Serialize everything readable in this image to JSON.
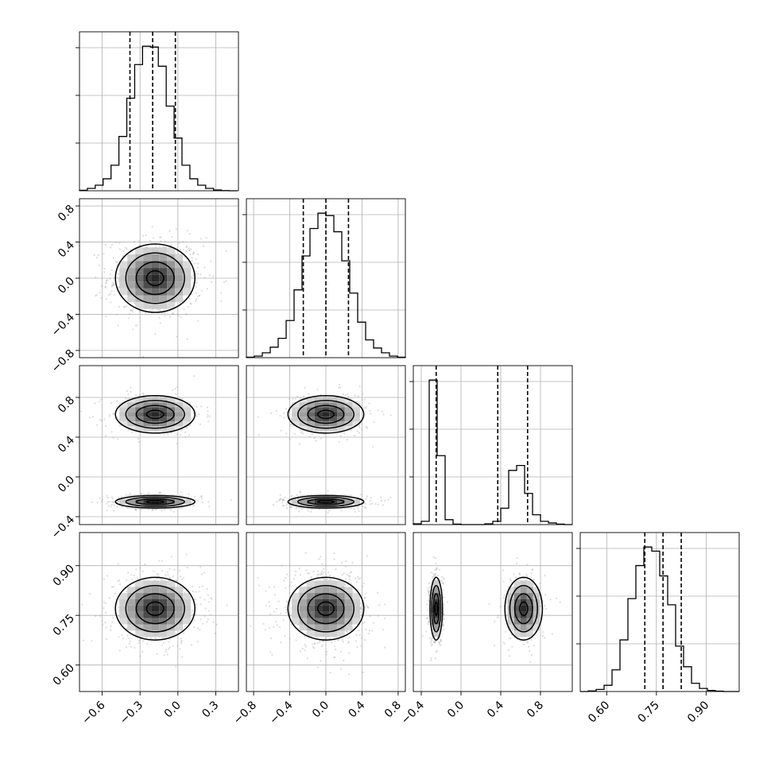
{
  "chart_data": {
    "type": "corner",
    "grid": true,
    "parameters": [
      {
        "index": 0,
        "range": [
          -0.78,
          0.48
        ],
        "ticks": [
          "−0.6",
          "−0.3",
          "0.0",
          "0.3"
        ],
        "tick_values": [
          -0.6,
          -0.3,
          0.0,
          0.3
        ]
      },
      {
        "index": 1,
        "range": [
          -0.88,
          0.88
        ],
        "ticks": [
          "−0.8",
          "−0.4",
          "0.0",
          "0.4",
          "0.8"
        ],
        "tick_values": [
          -0.8,
          -0.4,
          0.0,
          0.4,
          0.8
        ]
      },
      {
        "index": 2,
        "range": [
          -0.48,
          1.12
        ],
        "ticks": [
          "−0.4",
          "0.0",
          "0.4",
          "0.8"
        ],
        "tick_values": [
          -0.4,
          0.0,
          0.4,
          0.8
        ]
      },
      {
        "index": 3,
        "range": [
          0.52,
          1.0
        ],
        "ticks": [
          "0.60",
          "0.75",
          "0.90"
        ],
        "tick_values": [
          0.6,
          0.75,
          0.9
        ]
      }
    ],
    "histograms": [
      {
        "param": 0,
        "quantiles": [
          -0.38,
          -0.2,
          -0.02
        ],
        "bin_edges_start": -0.78,
        "bin_width": 0.0625,
        "counts": [
          0.3,
          1.5,
          3.5,
          7.5,
          16.0,
          34.0,
          58.0,
          79.0,
          90.5,
          90.0,
          78.0,
          53.0,
          33.0,
          16.0,
          7.5,
          3.5,
          1.5,
          0.5,
          0.1,
          0.0
        ]
      },
      {
        "param": 1,
        "quantiles": [
          -0.25,
          0.0,
          0.25
        ],
        "bin_edges_start": -0.88,
        "bin_width": 0.088,
        "counts": [
          0.3,
          1.0,
          3.0,
          6.5,
          12.0,
          23.0,
          42.0,
          63.0,
          80.0,
          89.5,
          88.0,
          78.0,
          60.0,
          40.0,
          22.0,
          11.0,
          6.0,
          3.0,
          1.0,
          0.3
        ]
      },
      {
        "param": 2,
        "quantiles": [
          -0.25,
          0.37,
          0.67
        ],
        "bin_edges_start": -0.48,
        "bin_width": 0.08,
        "counts": [
          0.5,
          2.0,
          88.0,
          42.0,
          3.0,
          0.3,
          0.0,
          0.0,
          0.0,
          0.5,
          2.0,
          10.0,
          33.0,
          36.0,
          19.0,
          6.0,
          2.0,
          1.0,
          0.3,
          0.0
        ]
      },
      {
        "param": 3,
        "quantiles": [
          0.715,
          0.77,
          0.825
        ],
        "bin_edges_start": 0.52,
        "bin_width": 0.024,
        "counts": [
          0.0,
          0.3,
          1.0,
          3.0,
          10.5,
          25.0,
          45.0,
          61.0,
          70.0,
          68.0,
          56.0,
          42.0,
          22.0,
          12.0,
          4.0,
          1.5,
          0.5,
          0.2,
          0.0,
          0.0
        ]
      }
    ],
    "joint": [
      {
        "x": 0,
        "y": 1,
        "modes": [
          {
            "cx": -0.18,
            "cy": 0.0,
            "sx": 0.15,
            "sy": 0.18,
            "w": 1.0
          }
        ]
      },
      {
        "x": 0,
        "y": 2,
        "modes": [
          {
            "cx": -0.18,
            "cy": 0.63,
            "sx": 0.15,
            "sy": 0.09,
            "w": 0.45
          },
          {
            "cx": -0.18,
            "cy": -0.25,
            "sx": 0.15,
            "sy": 0.03,
            "w": 0.55
          }
        ]
      },
      {
        "x": 1,
        "y": 2,
        "modes": [
          {
            "cx": 0.0,
            "cy": 0.63,
            "sx": 0.2,
            "sy": 0.09,
            "w": 0.45
          },
          {
            "cx": 0.0,
            "cy": -0.25,
            "sx": 0.2,
            "sy": 0.03,
            "w": 0.55
          }
        ]
      },
      {
        "x": 0,
        "y": 3,
        "modes": [
          {
            "cx": -0.18,
            "cy": 0.77,
            "sx": 0.15,
            "sy": 0.045,
            "w": 1.0
          }
        ]
      },
      {
        "x": 1,
        "y": 3,
        "modes": [
          {
            "cx": 0.0,
            "cy": 0.77,
            "sx": 0.2,
            "sy": 0.045,
            "w": 1.0
          }
        ]
      },
      {
        "x": 2,
        "y": 3,
        "modes": [
          {
            "cx": -0.25,
            "cy": 0.77,
            "sx": 0.03,
            "sy": 0.045,
            "w": 0.55
          },
          {
            "cx": 0.63,
            "cy": 0.77,
            "sx": 0.09,
            "sy": 0.045,
            "w": 0.45
          }
        ]
      }
    ]
  }
}
